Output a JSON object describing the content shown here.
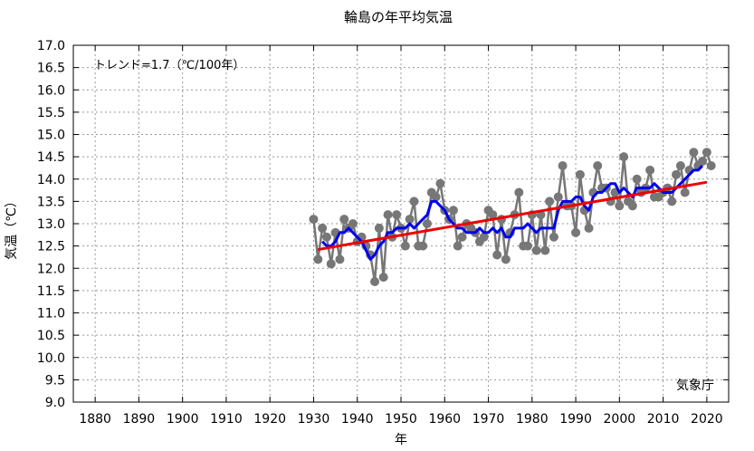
{
  "chart_data": {
    "type": "line",
    "title": "輪島の年平均気温",
    "xlabel": "年",
    "ylabel": "気温（℃）",
    "annotation": "トレンド=1.7（℃/100年）",
    "source": "気象庁",
    "xlim": [
      1875,
      2025
    ],
    "ylim": [
      9.0,
      17.0
    ],
    "xticks": [
      1880,
      1890,
      1900,
      1910,
      1920,
      1930,
      1940,
      1950,
      1960,
      1970,
      1980,
      1990,
      2000,
      2010,
      2020
    ],
    "yticks": [
      "9.0",
      "9.5",
      "10.0",
      "10.5",
      "11.0",
      "11.5",
      "12.0",
      "12.5",
      "13.0",
      "13.5",
      "14.0",
      "14.5",
      "15.0",
      "15.5",
      "16.0",
      "16.5",
      "17.0"
    ],
    "grid": true,
    "series": [
      {
        "role": "annual",
        "color": "#777777",
        "x": [
          1930,
          1931,
          1932,
          1933,
          1934,
          1935,
          1936,
          1937,
          1938,
          1939,
          1940,
          1941,
          1942,
          1943,
          1944,
          1945,
          1946,
          1947,
          1948,
          1949,
          1950,
          1951,
          1952,
          1953,
          1954,
          1955,
          1956,
          1957,
          1958,
          1959,
          1960,
          1961,
          1962,
          1963,
          1964,
          1965,
          1966,
          1967,
          1968,
          1969,
          1970,
          1971,
          1972,
          1973,
          1974,
          1975,
          1976,
          1977,
          1978,
          1979,
          1980,
          1981,
          1982,
          1983,
          1984,
          1985,
          1986,
          1987,
          1988,
          1989,
          1990,
          1991,
          1992,
          1993,
          1994,
          1995,
          1996,
          1997,
          1998,
          1999,
          2000,
          2001,
          2002,
          2003,
          2004,
          2005,
          2006,
          2007,
          2008,
          2009,
          2010,
          2011,
          2012,
          2013,
          2014,
          2015,
          2016,
          2017,
          2018,
          2019,
          2020,
          2021
        ],
        "y": [
          13.1,
          12.2,
          12.9,
          12.7,
          12.1,
          12.8,
          12.2,
          13.1,
          12.9,
          13.0,
          12.6,
          12.7,
          12.5,
          12.3,
          11.7,
          12.9,
          11.8,
          13.2,
          12.7,
          13.2,
          12.9,
          12.5,
          13.1,
          13.5,
          12.5,
          12.5,
          13.0,
          13.7,
          13.6,
          13.9,
          13.3,
          13.1,
          13.3,
          12.5,
          12.7,
          13.0,
          12.9,
          12.8,
          12.6,
          12.7,
          13.3,
          13.2,
          12.3,
          13.1,
          12.2,
          12.8,
          13.2,
          13.7,
          12.5,
          12.5,
          13.2,
          12.4,
          13.2,
          12.4,
          13.5,
          12.7,
          13.6,
          14.3,
          13.4,
          13.4,
          12.8,
          14.1,
          13.3,
          12.9,
          13.7,
          14.3,
          13.8,
          13.8,
          13.5,
          13.7,
          13.4,
          14.5,
          13.5,
          13.4,
          14.0,
          13.7,
          13.8,
          14.2,
          13.6,
          13.6,
          13.7,
          13.8,
          13.5,
          14.1,
          14.3,
          13.7,
          14.2,
          14.6,
          14.3,
          14.4,
          14.6,
          14.3
        ]
      },
      {
        "role": "5-year running mean",
        "color": "#0000ee",
        "x": [
          1932,
          1933,
          1934,
          1935,
          1936,
          1937,
          1938,
          1939,
          1940,
          1941,
          1942,
          1943,
          1944,
          1945,
          1946,
          1947,
          1948,
          1949,
          1950,
          1951,
          1952,
          1953,
          1954,
          1955,
          1956,
          1957,
          1958,
          1959,
          1960,
          1961,
          1962,
          1963,
          1964,
          1965,
          1966,
          1967,
          1968,
          1969,
          1970,
          1971,
          1972,
          1973,
          1974,
          1975,
          1976,
          1977,
          1978,
          1979,
          1980,
          1981,
          1982,
          1983,
          1984,
          1985,
          1986,
          1987,
          1988,
          1989,
          1990,
          1991,
          1992,
          1993,
          1994,
          1995,
          1996,
          1997,
          1998,
          1999,
          2000,
          2001,
          2002,
          2003,
          2004,
          2005,
          2006,
          2007,
          2008,
          2009,
          2010,
          2011,
          2012,
          2013,
          2014,
          2015,
          2016,
          2017,
          2018,
          2019
        ],
        "y": [
          12.6,
          12.5,
          12.5,
          12.6,
          12.8,
          12.8,
          12.9,
          12.8,
          12.7,
          12.6,
          12.4,
          12.2,
          12.3,
          12.5,
          12.6,
          12.8,
          12.8,
          12.9,
          12.9,
          12.9,
          13.0,
          12.9,
          13.0,
          13.1,
          13.2,
          13.5,
          13.5,
          13.4,
          13.3,
          13.1,
          13.0,
          12.9,
          12.9,
          12.8,
          12.8,
          12.8,
          12.9,
          12.8,
          12.8,
          12.9,
          12.8,
          12.9,
          12.7,
          12.7,
          12.9,
          12.9,
          12.9,
          13.0,
          12.9,
          12.8,
          12.9,
          12.9,
          12.9,
          12.9,
          13.3,
          13.5,
          13.5,
          13.5,
          13.6,
          13.6,
          13.4,
          13.3,
          13.6,
          13.7,
          13.7,
          13.8,
          13.9,
          13.9,
          13.7,
          13.8,
          13.7,
          13.6,
          13.8,
          13.8,
          13.8,
          13.8,
          13.9,
          13.8,
          13.7,
          13.7,
          13.7,
          13.8,
          13.9,
          14.0,
          14.1,
          14.2,
          14.2,
          14.3
        ]
      },
      {
        "role": "trend",
        "color": "#ee0000",
        "x": [
          1931,
          2020
        ],
        "y": [
          12.42,
          13.93
        ]
      }
    ]
  }
}
